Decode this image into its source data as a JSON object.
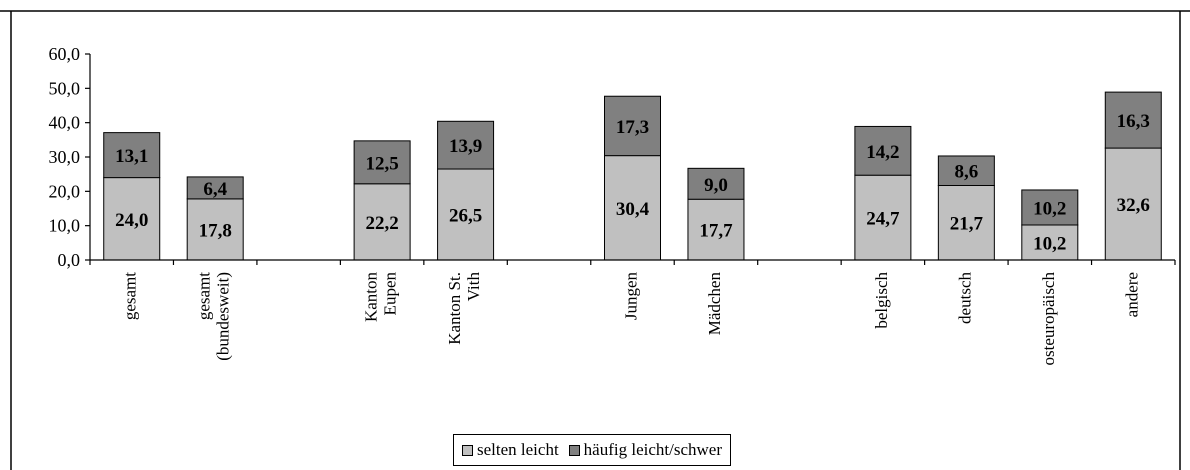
{
  "chart_data": {
    "type": "bar",
    "stacked": true,
    "categories": [
      "gesamt",
      "gesamt (bundesweit)",
      "",
      "Kanton Eupen",
      "Kanton St. Vith",
      "",
      "Jungen",
      "Mädchen",
      "",
      "belgisch",
      "deutsch",
      "osteuropäisch",
      "andere"
    ],
    "category_lines": [
      [
        "gesamt"
      ],
      [
        "gesamt",
        "(bundesweit)"
      ],
      [],
      [
        "Kanton",
        "Eupen"
      ],
      [
        "Kanton St.",
        "Vith"
      ],
      [],
      [
        "Jungen"
      ],
      [
        "Mädchen"
      ],
      [],
      [
        "belgisch"
      ],
      [
        "deutsch"
      ],
      [
        "osteuropäisch"
      ],
      [
        "andere"
      ]
    ],
    "series": [
      {
        "name": "selten leicht",
        "color": "#c0c0c0",
        "values": [
          24.0,
          17.8,
          null,
          22.2,
          26.5,
          null,
          30.4,
          17.7,
          null,
          24.7,
          21.7,
          10.2,
          32.6
        ],
        "labels": [
          "24,0",
          "17,8",
          "",
          "22,2",
          "26,5",
          "",
          "30,4",
          "17,7",
          "",
          "24,7",
          "21,7",
          "10,2",
          "32,6"
        ]
      },
      {
        "name": "häufig leicht/schwer",
        "color": "#808080",
        "values": [
          13.1,
          6.4,
          null,
          12.5,
          13.9,
          null,
          17.3,
          9.0,
          null,
          14.2,
          8.6,
          10.2,
          16.3
        ],
        "labels": [
          "13,1",
          "6,4",
          "",
          "12,5",
          "13,9",
          "",
          "17,3",
          "9,0",
          "",
          "14,2",
          "8,6",
          "10,2",
          "16,3"
        ]
      }
    ],
    "ylim": [
      0,
      60
    ],
    "yticks": [
      0,
      10,
      20,
      30,
      40,
      50,
      60
    ],
    "ytick_labels": [
      "0,0",
      "10,0",
      "20,0",
      "30,0",
      "40,0",
      "50,0",
      "60,0"
    ],
    "xlabel": "",
    "ylabel": "",
    "grid": false,
    "legend_position": "bottom"
  }
}
